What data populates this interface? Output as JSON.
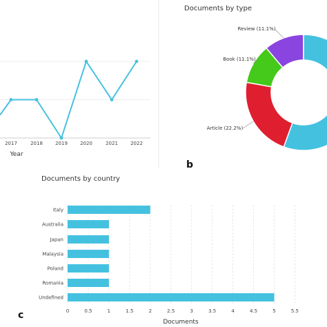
{
  "panels": {
    "b": "b",
    "c": "c"
  },
  "chart_data": [
    {
      "type": "line",
      "title": "",
      "xlabel": "Year",
      "ylabel": "",
      "x": [
        "2017",
        "2018",
        "2019",
        "2020",
        "2021",
        "2022"
      ],
      "series": [
        {
          "values": [
            1,
            1,
            0,
            2,
            1,
            2
          ],
          "color": "#45c1e0"
        }
      ],
      "y_hidden_left_point": 0.6,
      "ylim": [
        0,
        2.4
      ],
      "grid": true
    },
    {
      "type": "pie",
      "title": "Documents by type",
      "donut": true,
      "slices": [
        {
          "label": "Review (11.1%)",
          "value": 11.1,
          "color": "#8a44e0"
        },
        {
          "label": "",
          "value": 55.6,
          "color": "#45c1e0"
        },
        {
          "label": "Article (22.2%)",
          "value": 22.2,
          "color": "#df1f2f"
        },
        {
          "label": "Book (11.1%)",
          "value": 11.1,
          "color": "#45c91a"
        }
      ]
    },
    {
      "type": "bar",
      "orientation": "horizontal",
      "title": "Documents by country",
      "xlabel": "Documents",
      "ylabel": "",
      "categories": [
        "Italy",
        "Australia",
        "Japan",
        "Malaysia",
        "Poland",
        "Romania",
        "Undefined"
      ],
      "values": [
        2,
        1,
        1,
        1,
        1,
        1,
        5
      ],
      "xlim": [
        0,
        5.5
      ],
      "xticks": [
        "0",
        "0.5",
        "1",
        "1.5",
        "2",
        "2.5",
        "3",
        "3.5",
        "4",
        "4.5",
        "5",
        "5.5"
      ],
      "color": "#45c1e0",
      "grid": true
    }
  ]
}
